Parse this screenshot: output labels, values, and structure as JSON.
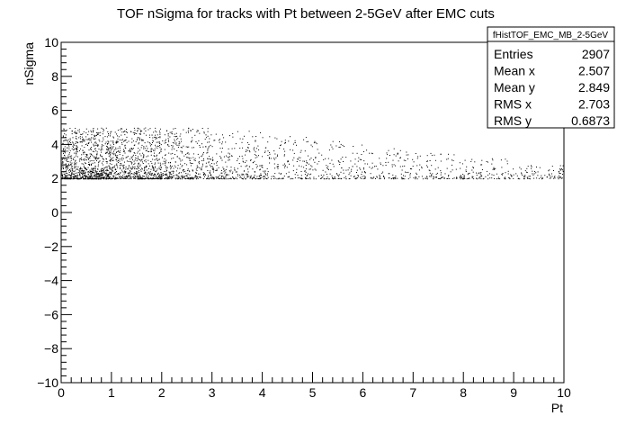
{
  "chart_data": {
    "type": "scatter",
    "title": "TOF nSigma for tracks with Pt between 2-5GeV after EMC cuts",
    "xlabel": "Pt",
    "ylabel": "nSigma",
    "xlim": [
      0,
      10
    ],
    "ylim": [
      -10,
      10
    ],
    "x_ticks": [
      0,
      1,
      2,
      3,
      4,
      5,
      6,
      7,
      8,
      9,
      10
    ],
    "y_ticks": [
      -10,
      -8,
      -6,
      -4,
      -2,
      0,
      2,
      4,
      6,
      8,
      10
    ],
    "x_tick_labels": [
      "0",
      "1",
      "2",
      "3",
      "4",
      "5",
      "6",
      "7",
      "8",
      "9",
      "10"
    ],
    "y_tick_labels": [
      "−10",
      "−8",
      "−6",
      "−4",
      "−2",
      "0",
      "2",
      "4",
      "6",
      "8",
      "10"
    ],
    "grid": false,
    "marker_color": "#000000",
    "stats_box": {
      "name": "fHistTOF_EMC_MB_2-5GeV",
      "rows": [
        {
          "label": "Entries",
          "value": "2907"
        },
        {
          "label": "Mean x",
          "value": "2.507"
        },
        {
          "label": "Mean y",
          "value": "2.849"
        },
        {
          "label": "RMS x",
          "value": "2.703"
        },
        {
          "label": "RMS y",
          "value": "0.6873"
        }
      ]
    },
    "density_profile": [
      {
        "x_range": [
          0,
          1
        ],
        "y_range": [
          2.0,
          5.0
        ],
        "approx_points": 900
      },
      {
        "x_range": [
          1,
          2
        ],
        "y_range": [
          2.0,
          5.0
        ],
        "approx_points": 650
      },
      {
        "x_range": [
          2,
          3
        ],
        "y_range": [
          2.0,
          5.0
        ],
        "approx_points": 400
      },
      {
        "x_range": [
          3,
          4
        ],
        "y_range": [
          2.0,
          4.8
        ],
        "approx_points": 260
      },
      {
        "x_range": [
          4,
          5
        ],
        "y_range": [
          2.0,
          4.5
        ],
        "approx_points": 180
      },
      {
        "x_range": [
          5,
          6
        ],
        "y_range": [
          2.0,
          4.2
        ],
        "approx_points": 140
      },
      {
        "x_range": [
          6,
          7
        ],
        "y_range": [
          2.0,
          3.8
        ],
        "approx_points": 120
      },
      {
        "x_range": [
          7,
          8
        ],
        "y_range": [
          2.0,
          3.5
        ],
        "approx_points": 110
      },
      {
        "x_range": [
          8,
          9
        ],
        "y_range": [
          2.0,
          3.2
        ],
        "approx_points": 100
      },
      {
        "x_range": [
          9,
          10
        ],
        "y_range": [
          2.0,
          2.8
        ],
        "approx_points": 90
      }
    ]
  }
}
